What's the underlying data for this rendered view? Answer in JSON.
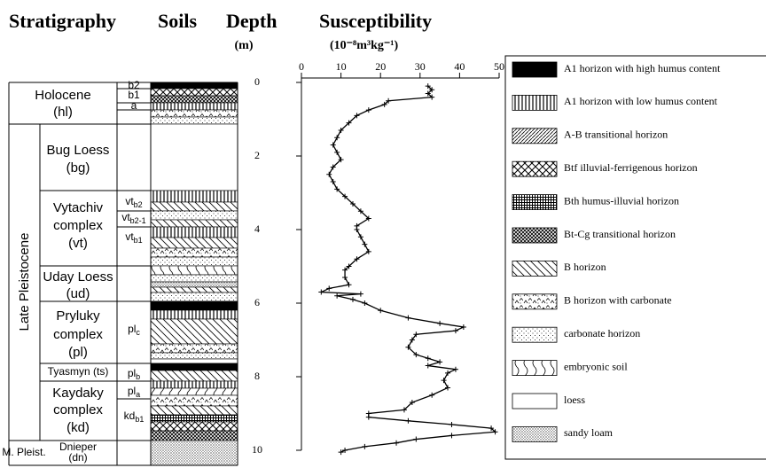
{
  "header": {
    "stratigraphy": "Stratigraphy",
    "soils": "Soils"
  },
  "chart_data": {
    "type": "line",
    "xlabel": "Depth",
    "xunit": "(m)",
    "ylabel": "Susceptibility",
    "yunit": "(10⁻⁸m³kg⁻¹)",
    "xlim": [
      0,
      10
    ],
    "xticks": [
      0,
      2,
      4,
      6,
      8,
      10
    ],
    "ylim": [
      0,
      50
    ],
    "yticks": [
      0,
      10,
      20,
      30,
      40,
      50
    ],
    "color": "#000000",
    "x": [
      0.1,
      0.2,
      0.3,
      0.4,
      0.5,
      0.6,
      0.75,
      0.9,
      1.1,
      1.3,
      1.5,
      1.7,
      1.9,
      2.1,
      2.3,
      2.5,
      2.7,
      2.9,
      3.1,
      3.3,
      3.5,
      3.7,
      3.9,
      4.0,
      4.2,
      4.4,
      4.6,
      4.8,
      5.0,
      5.1,
      5.3,
      5.5,
      5.6,
      5.7,
      5.75,
      5.8,
      5.9,
      6.0,
      6.2,
      6.4,
      6.55,
      6.65,
      6.75,
      6.85,
      7.0,
      7.2,
      7.4,
      7.5,
      7.6,
      7.7,
      7.8,
      7.9,
      8.1,
      8.3,
      8.5,
      8.7,
      8.9,
      9.0,
      9.1,
      9.2,
      9.3,
      9.4,
      9.5,
      9.6,
      9.7,
      9.8,
      9.9,
      10.0,
      10.05
    ],
    "values": [
      32,
      33,
      32,
      33,
      22,
      21,
      17,
      14,
      12,
      10,
      9,
      8,
      9,
      10,
      8,
      7,
      8,
      9,
      11,
      13,
      15,
      17,
      14,
      14,
      15,
      16,
      17,
      14,
      12,
      11,
      11,
      12,
      7,
      5,
      15,
      9,
      13,
      16,
      20,
      27,
      35,
      41,
      39,
      29,
      28,
      27,
      29,
      32,
      35,
      32,
      39,
      37,
      36,
      37,
      33,
      28,
      26,
      17,
      17,
      27,
      38,
      48,
      49,
      38,
      29,
      24,
      16,
      11,
      10
    ]
  },
  "column": {
    "units": [
      {
        "lines": [
          "Holocene",
          "(hl)"
        ]
      },
      {
        "lines": [
          "Bug Loess",
          "(bg)"
        ]
      },
      {
        "lines": [
          "Vytachiv",
          "complex",
          "(vt)"
        ]
      },
      {
        "lines": [
          "Uday Loess",
          "(ud)"
        ]
      },
      {
        "lines": [
          "Pryluky",
          "complex",
          "(pl)"
        ]
      },
      {
        "lines": [
          "Tyasmyn (ts)"
        ]
      },
      {
        "lines": [
          "Kaydaky",
          "complex",
          "(kd)"
        ]
      },
      {
        "lines": [
          "Dnieper",
          "(dn)"
        ]
      }
    ],
    "period": "Late Pleistocene",
    "period2": "M. Pleist.",
    "soils": [
      {
        "base": "b2"
      },
      {
        "base": "b1"
      },
      {
        "base": "a"
      },
      {
        "base": "vt",
        "sub": "b2"
      },
      {
        "base": "vt",
        "sub": "b2-1"
      },
      {
        "base": "vt",
        "sub": "b1"
      },
      {
        "base": "pl",
        "sub": "c"
      },
      {
        "base": "pl",
        "sub": "b"
      },
      {
        "base": "pl",
        "sub": "a"
      },
      {
        "base": "kd",
        "sub": "b1"
      }
    ]
  },
  "legend": [
    "A1 horizon with high humus content",
    "A1 horizon with low humus content",
    "A-B transitional horizon",
    "Btf illuvial-ferrigenous horizon",
    "Bth humus-illuvial horizon",
    "Bt-Cg transitional horizon",
    "B horizon",
    "B horizon with carbonate",
    "carbonate horizon",
    "embryonic soil",
    "loess",
    "sandy loam"
  ]
}
